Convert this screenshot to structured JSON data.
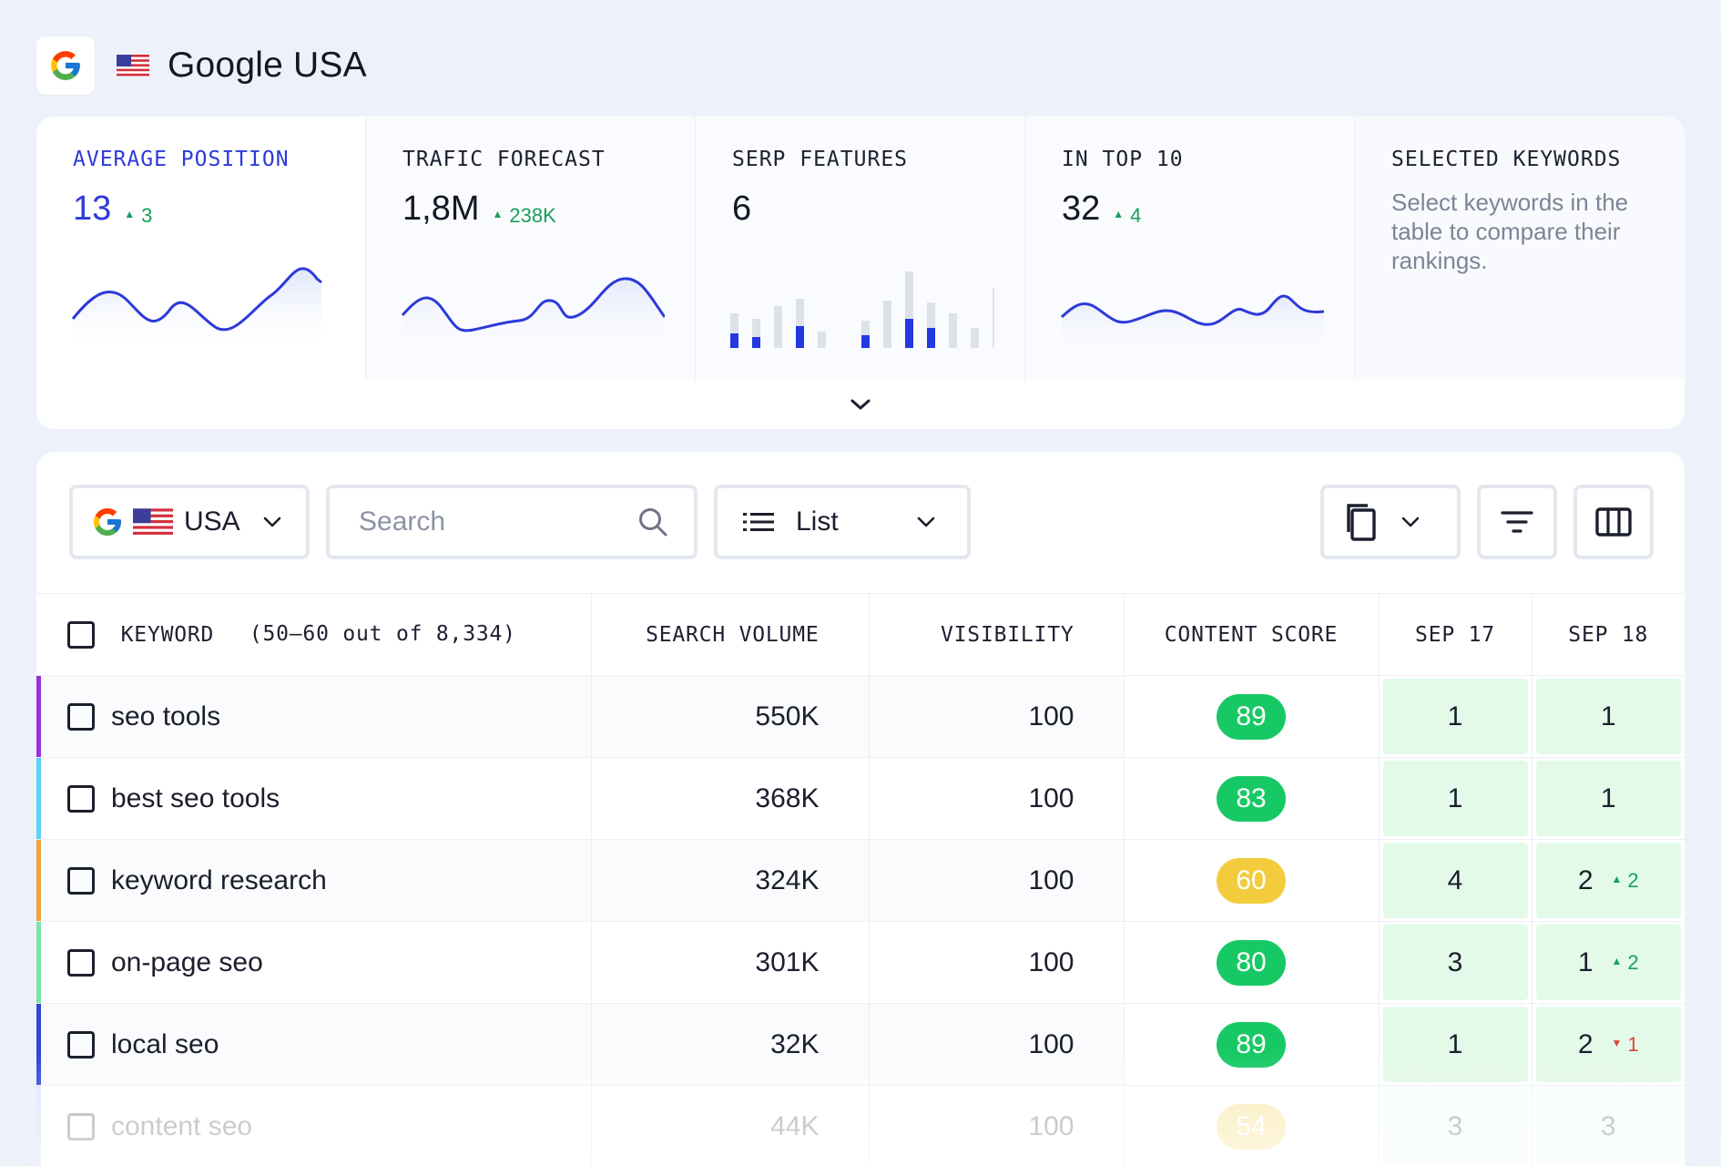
{
  "header": {
    "title": "Google USA",
    "engine_icon": "google-icon",
    "flag_icon": "us-flag-icon"
  },
  "stats": [
    {
      "label": "AVERAGE POSITION",
      "value": "13",
      "delta": "3",
      "delta_direction": "up",
      "chart": "line"
    },
    {
      "label": "TRAFIC FORECAST",
      "value": "1,8M",
      "delta": "238K",
      "delta_direction": "up",
      "chart": "line"
    },
    {
      "label": "SERP FEATURES",
      "value": "6",
      "chart": "bars"
    },
    {
      "label": "IN TOP 10",
      "value": "32",
      "delta": "4",
      "delta_direction": "up",
      "chart": "line"
    },
    {
      "label": "SELECTED KEYWORDS",
      "description": "Select keywords in the table to compare their rankings."
    }
  ],
  "expand_icon": "chevron-down-icon",
  "toolbar": {
    "country_label": "USA",
    "search_placeholder": "Search",
    "view_label": "List",
    "icons": [
      "google-icon",
      "us-flag-icon",
      "chevron-down-icon",
      "search-icon",
      "list-icon",
      "copy-icon",
      "filter-icon",
      "columns-icon"
    ]
  },
  "table": {
    "columns": {
      "keyword": "KEYWORD",
      "range": "(50–60 out of 8,334)",
      "volume": "SEARCH VOLUME",
      "visibility": "VISIBILITY",
      "content_score": "CONTENT SCORE",
      "date1": "SEP 17",
      "date2": "SEP 18"
    },
    "rows": [
      {
        "keyword": "seo tools",
        "volume": "550K",
        "visibility": "100",
        "score": "89",
        "score_color": "#17c964",
        "rank1": "1",
        "rank2": "1",
        "rank2_delta": "",
        "rank2_dir": "",
        "accent": "#9b2fd6"
      },
      {
        "keyword": "best seo tools",
        "volume": "368K",
        "visibility": "100",
        "score": "83",
        "score_color": "#17c964",
        "rank1": "1",
        "rank2": "1",
        "rank2_delta": "",
        "rank2_dir": "",
        "accent": "#56d3f5"
      },
      {
        "keyword": "keyword research",
        "volume": "324K",
        "visibility": "100",
        "score": "60",
        "score_color": "#f3cc3e",
        "rank1": "4",
        "rank2": "2",
        "rank2_delta": "2",
        "rank2_dir": "up",
        "accent": "#f2a43a"
      },
      {
        "keyword": "on-page seo",
        "volume": "301K",
        "visibility": "100",
        "score": "80",
        "score_color": "#17c964",
        "rank1": "3",
        "rank2": "1",
        "rank2_delta": "2",
        "rank2_dir": "up",
        "accent": "#7be3a6"
      },
      {
        "keyword": "local seo",
        "volume": "32K",
        "visibility": "100",
        "score": "89",
        "score_color": "#17c964",
        "rank1": "1",
        "rank2": "2",
        "rank2_delta": "1",
        "rank2_dir": "down",
        "accent": "#3046d8"
      },
      {
        "keyword": "content seo",
        "volume": "44K",
        "visibility": "100",
        "score": "54",
        "score_color": "#f3cc3e",
        "rank1": "3",
        "rank2": "3",
        "rank2_delta": "",
        "rank2_dir": "",
        "accent": "#a8b4ea"
      }
    ]
  },
  "colors": {
    "accent_blue": "#2d3ad9",
    "positive": "#18a05a",
    "negative": "#e0453a",
    "rank_cell_bg": "#e3fae8"
  }
}
